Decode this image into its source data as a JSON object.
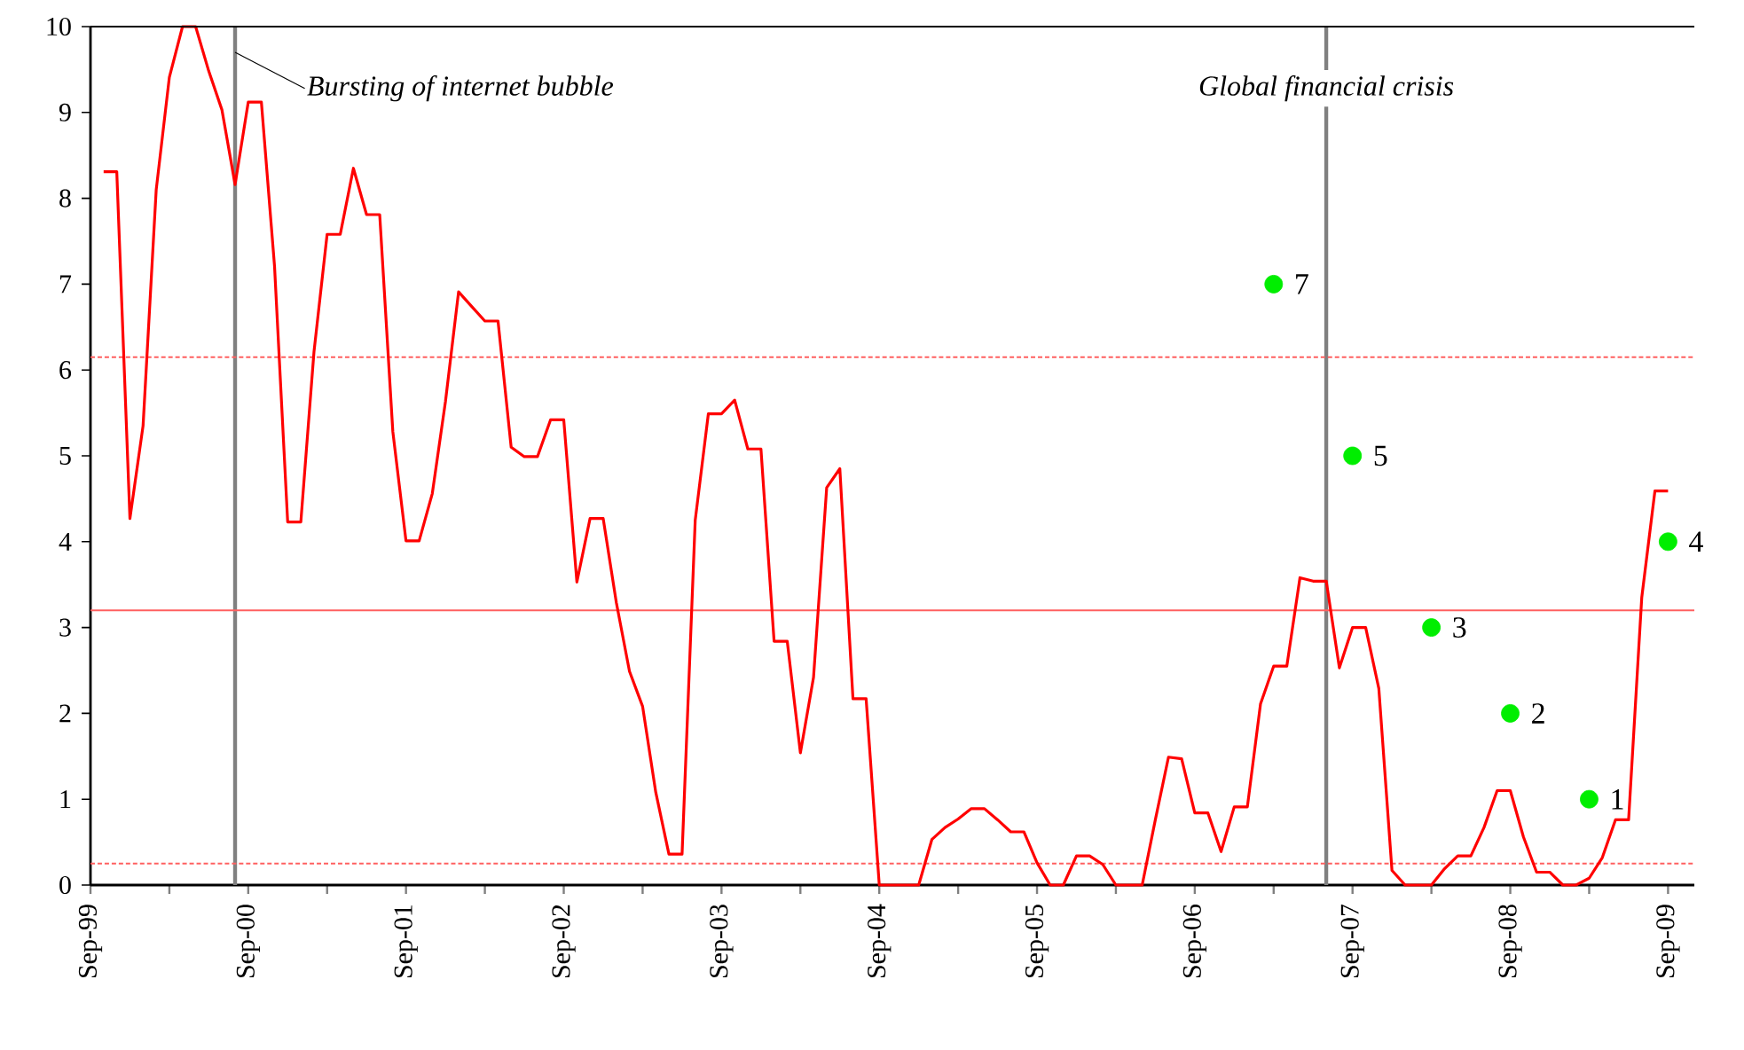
{
  "chart_data": {
    "type": "line",
    "x": [
      "1999-10",
      "1999-11",
      "1999-12",
      "2000-01",
      "2000-02",
      "2000-03",
      "2000-04",
      "2000-05",
      "2000-06",
      "2000-07",
      "2000-08",
      "2000-09",
      "2000-10",
      "2000-11",
      "2000-12",
      "2001-01",
      "2001-02",
      "2001-03",
      "2001-04",
      "2001-05",
      "2001-06",
      "2001-07",
      "2001-08",
      "2001-09",
      "2001-10",
      "2001-11",
      "2001-12",
      "2002-01",
      "2002-02",
      "2002-03",
      "2002-04",
      "2002-05",
      "2002-06",
      "2002-07",
      "2002-08",
      "2002-09",
      "2002-10",
      "2002-11",
      "2002-12",
      "2003-01",
      "2003-02",
      "2003-03",
      "2003-04",
      "2003-05",
      "2003-06",
      "2003-07",
      "2003-08",
      "2003-09",
      "2003-10",
      "2003-11",
      "2003-12",
      "2004-01",
      "2004-02",
      "2004-03",
      "2004-04",
      "2004-05",
      "2004-06",
      "2004-07",
      "2004-08",
      "2004-09",
      "2004-10",
      "2004-11",
      "2004-12",
      "2005-01",
      "2005-02",
      "2005-03",
      "2005-04",
      "2005-05",
      "2005-06",
      "2005-07",
      "2005-08",
      "2005-09",
      "2005-10",
      "2005-11",
      "2005-12",
      "2006-01",
      "2006-02",
      "2006-03",
      "2006-04",
      "2006-05",
      "2006-06",
      "2006-07",
      "2006-08",
      "2006-09",
      "2006-10",
      "2006-11",
      "2006-12",
      "2007-01",
      "2007-02",
      "2007-03",
      "2007-04",
      "2007-05",
      "2007-06",
      "2007-07",
      "2007-08",
      "2007-09",
      "2007-10",
      "2007-11",
      "2007-12",
      "2008-01",
      "2008-02",
      "2008-03",
      "2008-04",
      "2008-05",
      "2008-06",
      "2008-07",
      "2008-08",
      "2008-09",
      "2008-10",
      "2008-11",
      "2008-12",
      "2009-01",
      "2009-02",
      "2009-03",
      "2009-04",
      "2009-05",
      "2009-06",
      "2009-07",
      "2009-08",
      "2009-09"
    ],
    "series": [
      {
        "color": "#ff0000",
        "values": [
          8.31,
          8.31,
          4.27,
          5.35,
          8.1,
          9.41,
          10,
          10,
          9.48,
          9.03,
          8.16,
          9.12,
          9.12,
          7.21,
          4.23,
          4.23,
          6.21,
          7.58,
          7.58,
          8.35,
          7.81,
          7.81,
          5.28,
          4.01,
          4.01,
          4.56,
          5.63,
          6.91,
          6.74,
          6.57,
          6.57,
          5.1,
          4.99,
          4.99,
          5.42,
          5.42,
          3.53,
          4.27,
          4.27,
          3.29,
          2.49,
          2.08,
          1.08,
          0.36,
          0.36,
          4.25,
          5.49,
          5.49,
          5.65,
          5.08,
          5.08,
          2.84,
          2.84,
          1.54,
          2.42,
          4.63,
          4.85,
          2.17,
          2.17,
          0,
          0,
          0,
          0,
          0.53,
          0.67,
          0.77,
          0.89,
          0.89,
          0.76,
          0.62,
          0.62,
          0.26,
          0,
          0,
          0.34,
          0.34,
          0.24,
          0,
          0,
          0,
          0.76,
          1.49,
          1.47,
          0.84,
          0.84,
          0.39,
          0.91,
          0.91,
          2.11,
          2.55,
          2.55,
          3.58,
          3.54,
          3.54,
          2.53,
          3.0,
          3.0,
          2.29,
          0.17,
          0,
          0,
          0,
          0.19,
          0.34,
          0.34,
          0.67,
          1.1,
          1.1,
          0.56,
          0.15,
          0.15,
          0,
          0,
          0.08,
          0.32,
          0.76,
          0.76,
          3.35,
          4.59,
          4.59
        ]
      },
      {
        "type": "scatter",
        "color": "#00ee00",
        "marker": "circle",
        "x": [
          "2007-03",
          "2007-09",
          "2008-03",
          "2008-09",
          "2009-03",
          "2009-09"
        ],
        "values": [
          7,
          5,
          3,
          2,
          1,
          4
        ],
        "value_labels": [
          "7",
          "5",
          "3",
          "2",
          "1",
          "4"
        ]
      }
    ],
    "xlim": [
      "1999-09",
      "2009-11"
    ],
    "xticks": [
      {
        "value": "1999-09",
        "label": "Sep-99"
      },
      {
        "value": "2000-03",
        "label": null
      },
      {
        "value": "2000-09",
        "label": "Sep-00"
      },
      {
        "value": "2001-03",
        "label": null
      },
      {
        "value": "2001-09",
        "label": "Sep-01"
      },
      {
        "value": "2002-03",
        "label": null
      },
      {
        "value": "2002-09",
        "label": "Sep-02"
      },
      {
        "value": "2003-03",
        "label": null
      },
      {
        "value": "2003-09",
        "label": "Sep-03"
      },
      {
        "value": "2004-03",
        "label": null
      },
      {
        "value": "2004-09",
        "label": "Sep-04"
      },
      {
        "value": "2005-03",
        "label": null
      },
      {
        "value": "2005-09",
        "label": "Sep-05"
      },
      {
        "value": "2006-03",
        "label": null
      },
      {
        "value": "2006-09",
        "label": "Sep-06"
      },
      {
        "value": "2007-03",
        "label": null
      },
      {
        "value": "2007-09",
        "label": "Sep-07"
      },
      {
        "value": "2008-03",
        "label": null
      },
      {
        "value": "2008-09",
        "label": "Sep-08"
      },
      {
        "value": "2009-03",
        "label": null
      },
      {
        "value": "2009-09",
        "label": "Sep-09"
      }
    ],
    "ylim": [
      0,
      10
    ],
    "yticks": [
      0,
      1,
      2,
      3,
      4,
      5,
      6,
      7,
      8,
      9,
      10
    ],
    "ref_lines": [
      {
        "axis": "x",
        "value": "2000-08",
        "label": "Bursting of internet bubble",
        "color": "#808080"
      },
      {
        "axis": "x",
        "value": "2007-07",
        "label": "Global financial crisis",
        "color": "#808080"
      },
      {
        "axis": "y",
        "value": 3.2,
        "color": "#ff6060",
        "line_style": "solid"
      },
      {
        "axis": "y",
        "value": 6.15,
        "color": "#ff6060",
        "line_style": "dashed"
      },
      {
        "axis": "y",
        "value": 0.25,
        "color": "#ff6060",
        "line_style": "dashed"
      }
    ],
    "grid": false,
    "marker": "none",
    "line_style": "solid"
  }
}
